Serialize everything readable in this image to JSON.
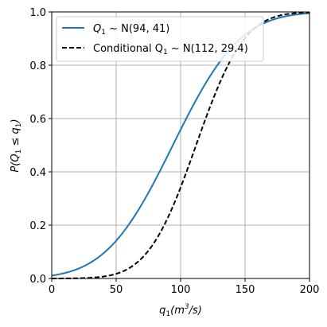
{
  "chart_data": {
    "type": "line",
    "xlabel_main": "q",
    "xlabel_sub": "1",
    "xlabel_units": "(m",
    "xlabel_units_sup": "3",
    "xlabel_units_tail": "/s)",
    "ylabel_pre": "P(Q",
    "ylabel_sub1": "1",
    "ylabel_mid": " ≤ q",
    "ylabel_sub2": "1",
    "ylabel_post": ")",
    "xlim": [
      0,
      200
    ],
    "ylim": [
      0,
      1.0
    ],
    "xticks": [
      "0",
      "50",
      "100",
      "150",
      "200"
    ],
    "yticks": [
      "0.0",
      "0.2",
      "0.4",
      "0.6",
      "0.8",
      "1.0"
    ],
    "grid": true,
    "legend_position": "top-left",
    "series": [
      {
        "name": "Q1 ~ N(94, 41)",
        "legend_parts": [
          "Q",
          "1",
          " ~ N(94, 41)"
        ],
        "mean": 94,
        "sd": 41,
        "color": "#1f77b4",
        "style": "solid",
        "x": [
          0,
          10,
          20,
          30,
          40,
          50,
          60,
          70,
          80,
          90,
          100,
          110,
          120,
          130,
          140,
          150,
          160,
          170,
          180,
          190,
          200
        ],
        "y": [
          0.011,
          0.02,
          0.036,
          0.059,
          0.094,
          0.142,
          0.204,
          0.279,
          0.366,
          0.461,
          0.558,
          0.651,
          0.737,
          0.81,
          0.869,
          0.915,
          0.947,
          0.969,
          0.982,
          0.99,
          0.995
        ]
      },
      {
        "name": "Conditional Q1 ~ N(112, 29.4)",
        "legend_parts": [
          "Conditional Q",
          "1",
          " ~ N(112, 29.4)"
        ],
        "mean": 112,
        "sd": 29.4,
        "color": "#000000",
        "style": "dashed",
        "x": [
          0,
          10,
          20,
          30,
          40,
          50,
          60,
          70,
          80,
          90,
          100,
          110,
          120,
          130,
          140,
          150,
          160,
          170,
          180,
          190,
          200
        ],
        "y": [
          0.0001,
          0.0003,
          0.0009,
          0.0026,
          0.0071,
          0.0175,
          0.0385,
          0.077,
          0.138,
          0.227,
          0.342,
          0.473,
          0.607,
          0.73,
          0.83,
          0.902,
          0.949,
          0.976,
          0.99,
          0.996,
          0.999
        ]
      }
    ]
  }
}
